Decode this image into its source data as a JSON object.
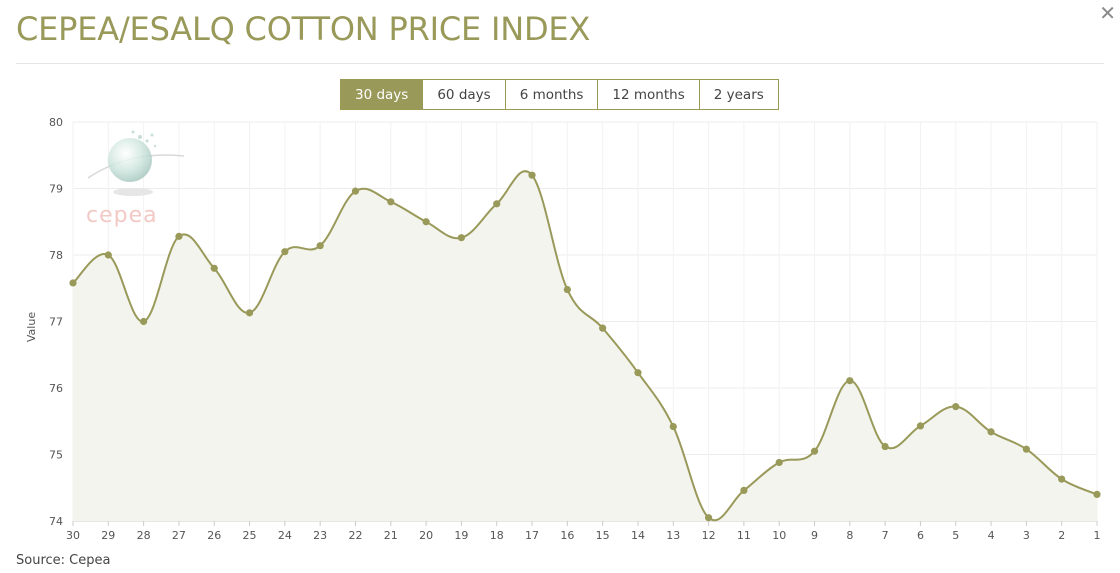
{
  "header": {
    "title": "CEPEA/ESALQ COTTON PRICE INDEX",
    "close_icon": "close-icon"
  },
  "tabs": [
    {
      "label": "30 days",
      "active": true
    },
    {
      "label": "60 days",
      "active": false
    },
    {
      "label": "6 months",
      "active": false
    },
    {
      "label": "12 months",
      "active": false
    },
    {
      "label": "2 years",
      "active": false
    }
  ],
  "watermark": {
    "text": "cepea"
  },
  "colors": {
    "accent": "#99995a",
    "line": "#99995a",
    "area": "#f4f4ef",
    "grid": "#ececec"
  },
  "chart_data": {
    "type": "area",
    "ylabel": "Value",
    "xlabel": "",
    "ylim": [
      74,
      80
    ],
    "yticks": [
      74,
      75,
      76,
      77,
      78,
      79,
      80
    ],
    "grid": true,
    "categories": [
      "30",
      "29",
      "28",
      "27",
      "26",
      "25",
      "24",
      "23",
      "22",
      "21",
      "20",
      "19",
      "18",
      "17",
      "16",
      "15",
      "14",
      "13",
      "12",
      "11",
      "10",
      "9",
      "8",
      "7",
      "6",
      "5",
      "4",
      "3",
      "2",
      "1"
    ],
    "series": [
      {
        "values": [
          77.58,
          78.0,
          77.0,
          78.28,
          77.8,
          77.13,
          78.05,
          78.14,
          78.96,
          78.8,
          78.5,
          78.26,
          78.77,
          79.2,
          77.48,
          76.9,
          76.23,
          75.42,
          74.05,
          74.46,
          74.88,
          75.05,
          76.11,
          75.12,
          75.43,
          75.72,
          75.34,
          75.08,
          74.63,
          74.4
        ]
      }
    ]
  },
  "footer": {
    "source": "Source: Cepea"
  }
}
